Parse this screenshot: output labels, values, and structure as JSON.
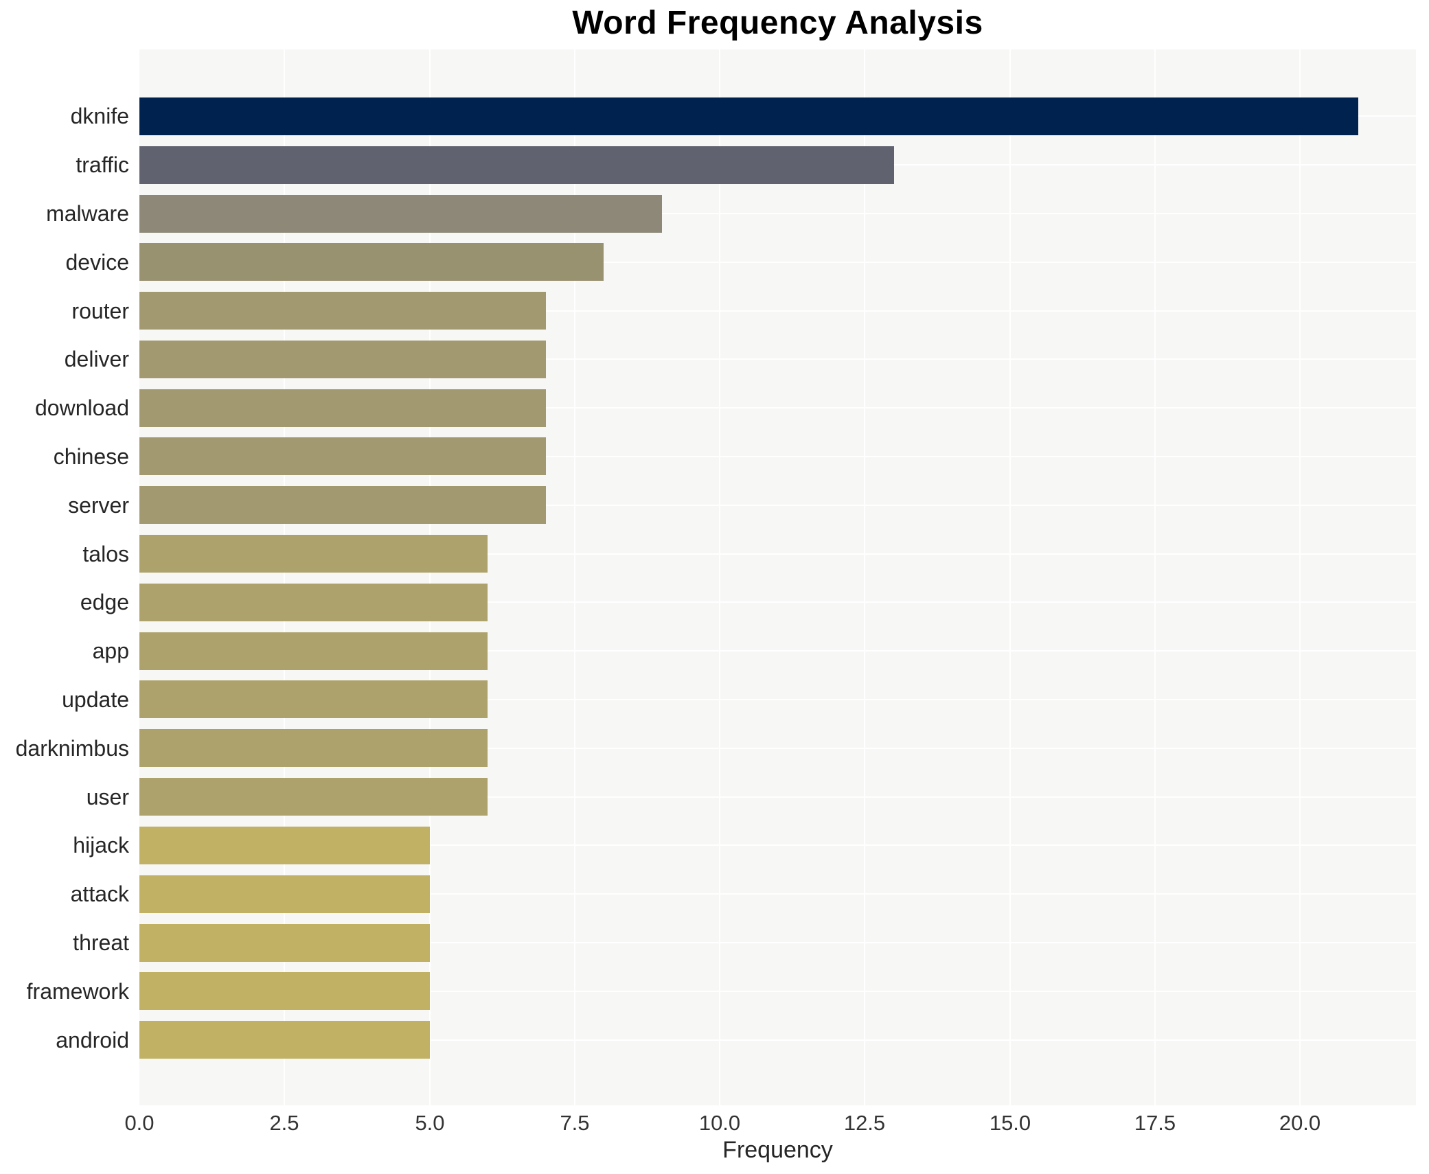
{
  "chart_data": {
    "type": "bar",
    "orientation": "horizontal",
    "title": "Word Frequency Analysis",
    "xlabel": "Frequency",
    "ylabel": "",
    "categories": [
      "dknife",
      "traffic",
      "malware",
      "device",
      "router",
      "deliver",
      "download",
      "chinese",
      "server",
      "talos",
      "edge",
      "app",
      "update",
      "darknimbus",
      "user",
      "hijack",
      "attack",
      "threat",
      "framework",
      "android"
    ],
    "values": [
      21,
      13,
      9,
      8,
      7,
      7,
      7,
      7,
      7,
      6,
      6,
      6,
      6,
      6,
      6,
      5,
      5,
      5,
      5,
      5
    ],
    "bar_colors": [
      "#00224e",
      "#60636f",
      "#8d8877",
      "#999270",
      "#a29970",
      "#a29970",
      "#a29970",
      "#a29970",
      "#a29970",
      "#ada26b",
      "#ada26b",
      "#ada26b",
      "#ada26b",
      "#ada26b",
      "#ada26b",
      "#c0b164",
      "#c0b164",
      "#c0b164",
      "#c0b164",
      "#c0b164"
    ],
    "x_ticks": [
      0,
      2.5,
      5,
      7.5,
      10,
      12.5,
      15,
      17.5,
      20
    ],
    "x_tick_labels": [
      "0.0",
      "2.5",
      "5.0",
      "7.5",
      "10.0",
      "12.5",
      "15.0",
      "17.5",
      "20.0"
    ],
    "xlim": [
      0,
      22
    ],
    "grid": true,
    "legend_position": "none",
    "colors": {
      "plot_bg": "#f7f7f5",
      "grid": "#ffffff",
      "tick_text": "#333333",
      "label_text": "#262626",
      "title_text": "#000000"
    }
  }
}
